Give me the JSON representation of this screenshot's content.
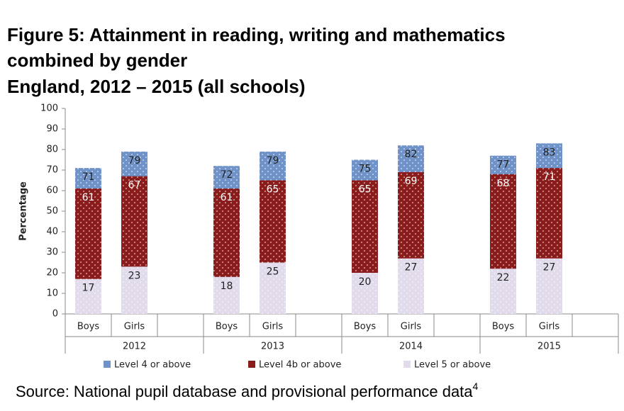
{
  "chart_data": {
    "type": "overlaid_bar",
    "title_lines": [
      "Figure 5: Attainment in reading, writing and mathematics",
      "combined by gender",
      "England, 2012 – 2015 (all schools)"
    ],
    "ylabel": "Percentage",
    "categories": [
      "Boys",
      "Girls",
      "Boys",
      "Girls",
      "Boys",
      "Girls",
      "Boys",
      "Girls"
    ],
    "groups": [
      "2012",
      "2013",
      "2014",
      "2015"
    ],
    "series": [
      {
        "name": "Level 4 or above",
        "color": "#6f93c8",
        "values": [
          71,
          79,
          72,
          79,
          75,
          82,
          77,
          83
        ]
      },
      {
        "name": "Level 4b or above",
        "color": "#8b1c1c",
        "values": [
          61,
          67,
          61,
          65,
          65,
          69,
          68,
          71
        ]
      },
      {
        "name": "Level 5 or above",
        "color": "#e2dbec",
        "values": [
          17,
          23,
          18,
          25,
          20,
          27,
          22,
          27
        ]
      }
    ],
    "ylim": [
      0,
      100
    ],
    "yticks": [
      0,
      10,
      20,
      30,
      40,
      50,
      60,
      70,
      80,
      90,
      100
    ],
    "legend": "bottom",
    "source": "Source: National pupil database and provisional performance data",
    "source_note": "4"
  }
}
